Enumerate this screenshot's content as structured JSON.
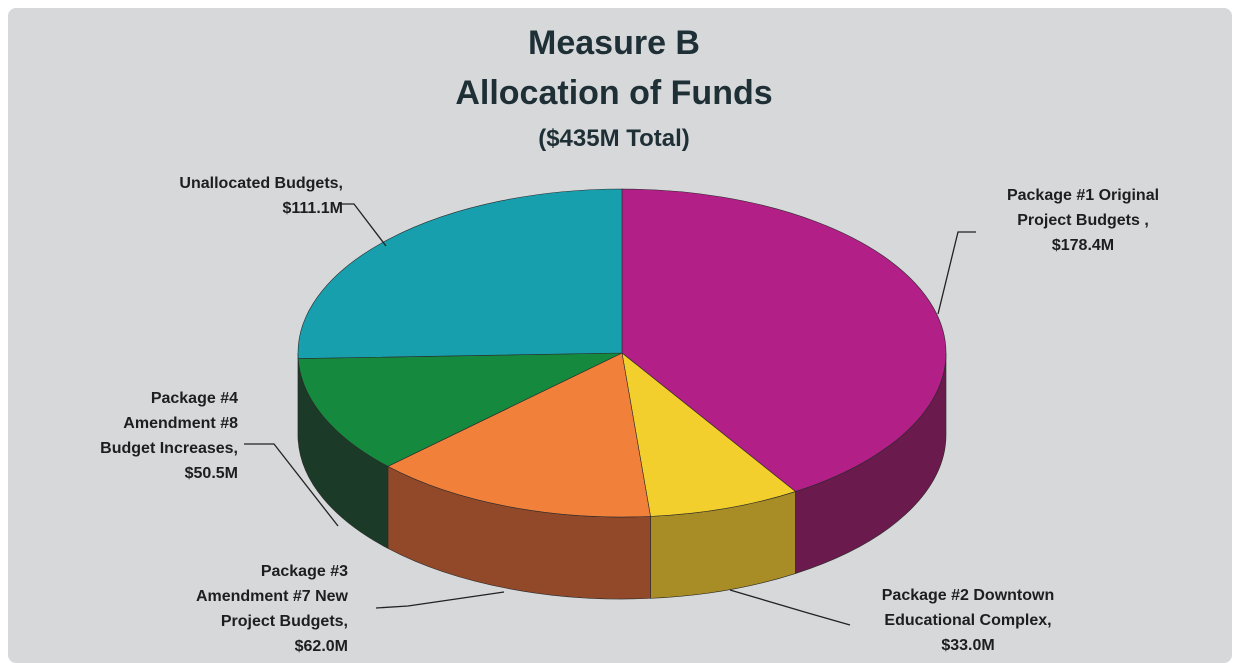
{
  "chart_data": {
    "type": "pie",
    "title": [
      "Measure B",
      "Allocation of Funds"
    ],
    "subtitle": "($435M Total)",
    "slices": [
      {
        "label": [
          "Package #1 Original",
          "Project Budgets ,",
          "$178.4M"
        ],
        "value": 178.4,
        "color": "#b21f86",
        "side_color": "#6a1a4c"
      },
      {
        "label": [
          "Package #2 Downtown",
          "Educational Complex,",
          "$33.0M"
        ],
        "value": 33.0,
        "color": "#f2cf2c",
        "side_color": "#a88c25"
      },
      {
        "label": [
          "Package #3",
          "Amendment #7 New",
          "Project Budgets,",
          "$62.0M"
        ],
        "value": 62.0,
        "color": "#f0803a",
        "side_color": "#91492a"
      },
      {
        "label": [
          "Package #4",
          "Amendment #8",
          "Budget Increases,",
          "$50.5M"
        ],
        "value": 50.5,
        "color": "#158a3e",
        "side_color": "#1b3a27"
      },
      {
        "label": [
          "Unallocated Budgets,",
          "$111.1M"
        ],
        "value": 111.1,
        "color": "#189fae",
        "side_color": "#155a62"
      }
    ]
  }
}
